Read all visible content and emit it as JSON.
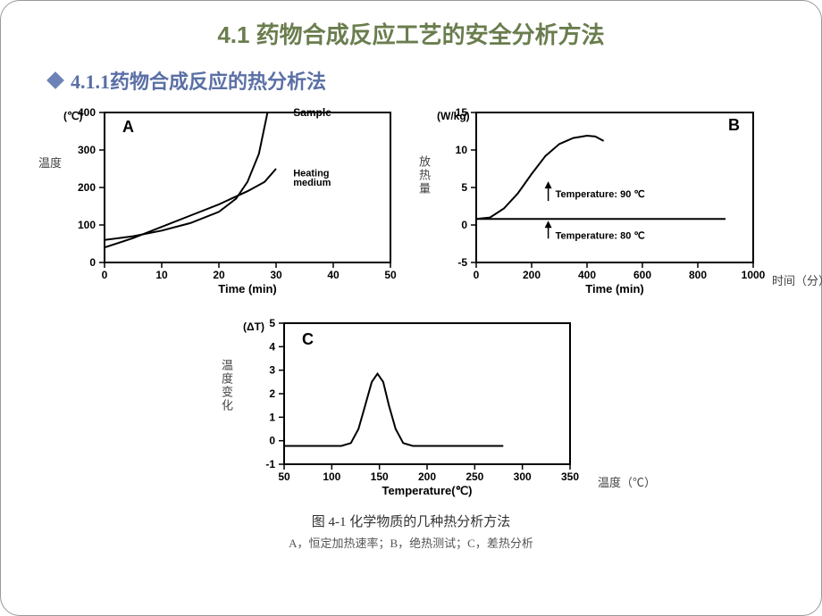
{
  "title": "4.1 药物合成反应工艺的安全分析方法",
  "subtitle": "4.1.1药物合成反应的热分析法",
  "figure_caption": "图 4-1 化学物质的几种热分析方法",
  "figure_subcaption": "A，恒定加热速率；B，绝热测试；C，差热分析",
  "chartA": {
    "type": "line",
    "panel_label": "A",
    "side_label": "温度",
    "y_label": "(℃)",
    "x_label": "Time (min)",
    "xlim": [
      0,
      50
    ],
    "ylim": [
      0,
      400
    ],
    "xticks": [
      0,
      10,
      20,
      30,
      40,
      50
    ],
    "yticks": [
      0,
      100,
      200,
      300,
      400
    ],
    "series": [
      {
        "name": "Sample",
        "label": "Sample",
        "points": [
          [
            0,
            60
          ],
          [
            5,
            70
          ],
          [
            10,
            85
          ],
          [
            15,
            105
          ],
          [
            20,
            135
          ],
          [
            23,
            170
          ],
          [
            25,
            215
          ],
          [
            27,
            290
          ],
          [
            28.5,
            400
          ]
        ]
      },
      {
        "name": "Heating medium",
        "label": "Heating\nmedium",
        "points": [
          [
            0,
            40
          ],
          [
            5,
            65
          ],
          [
            10,
            95
          ],
          [
            15,
            125
          ],
          [
            20,
            155
          ],
          [
            25,
            190
          ],
          [
            28,
            215
          ],
          [
            30,
            250
          ]
        ]
      }
    ],
    "axis_color": "#000",
    "line_width": 2,
    "bg": "#fff"
  },
  "chartB": {
    "type": "line",
    "panel_label": "B",
    "side_label": "放热量",
    "right_label": "时间（分）",
    "y_label": "(W/kg)",
    "x_label": "Time (min)",
    "xlim": [
      0,
      1000
    ],
    "ylim": [
      -5,
      15
    ],
    "xticks": [
      0,
      200,
      400,
      600,
      800,
      1000
    ],
    "yticks": [
      -5,
      0,
      5,
      10,
      15
    ],
    "series": [
      {
        "name": "Temperature 80",
        "label": "Temperature: 80 ℃",
        "points": [
          [
            0,
            0.8
          ],
          [
            900,
            0.8
          ]
        ]
      },
      {
        "name": "Temperature 90",
        "label": "Temperature: 90 ℃",
        "points": [
          [
            0,
            0.8
          ],
          [
            50,
            1.0
          ],
          [
            100,
            2.2
          ],
          [
            150,
            4.2
          ],
          [
            200,
            6.8
          ],
          [
            250,
            9.2
          ],
          [
            300,
            10.8
          ],
          [
            350,
            11.6
          ],
          [
            400,
            11.9
          ],
          [
            430,
            11.8
          ],
          [
            460,
            11.2
          ]
        ]
      }
    ],
    "axis_color": "#000",
    "line_width": 2,
    "bg": "#fff"
  },
  "chartC": {
    "type": "line",
    "panel_label": "C",
    "side_label": "温度变化",
    "right_label": "温度（℃）",
    "y_label": "(ΔT)",
    "x_label": "Temperature(℃)",
    "xlim": [
      50,
      350
    ],
    "ylim": [
      -1,
      5
    ],
    "xticks": [
      50,
      100,
      150,
      200,
      250,
      300,
      350
    ],
    "yticks": [
      -1,
      0,
      1,
      2,
      3,
      4,
      5
    ],
    "series": [
      {
        "name": "peak",
        "points": [
          [
            50,
            -0.22
          ],
          [
            110,
            -0.22
          ],
          [
            120,
            -0.1
          ],
          [
            128,
            0.5
          ],
          [
            135,
            1.5
          ],
          [
            142,
            2.5
          ],
          [
            148,
            2.85
          ],
          [
            154,
            2.5
          ],
          [
            160,
            1.5
          ],
          [
            167,
            0.5
          ],
          [
            175,
            -0.1
          ],
          [
            185,
            -0.22
          ],
          [
            280,
            -0.22
          ]
        ]
      }
    ],
    "axis_color": "#000",
    "line_width": 2,
    "bg": "#fff"
  },
  "colors": {
    "title": "#6a7d4e",
    "subtitle": "#5a6fa5",
    "diamond": "#6d83b7"
  }
}
